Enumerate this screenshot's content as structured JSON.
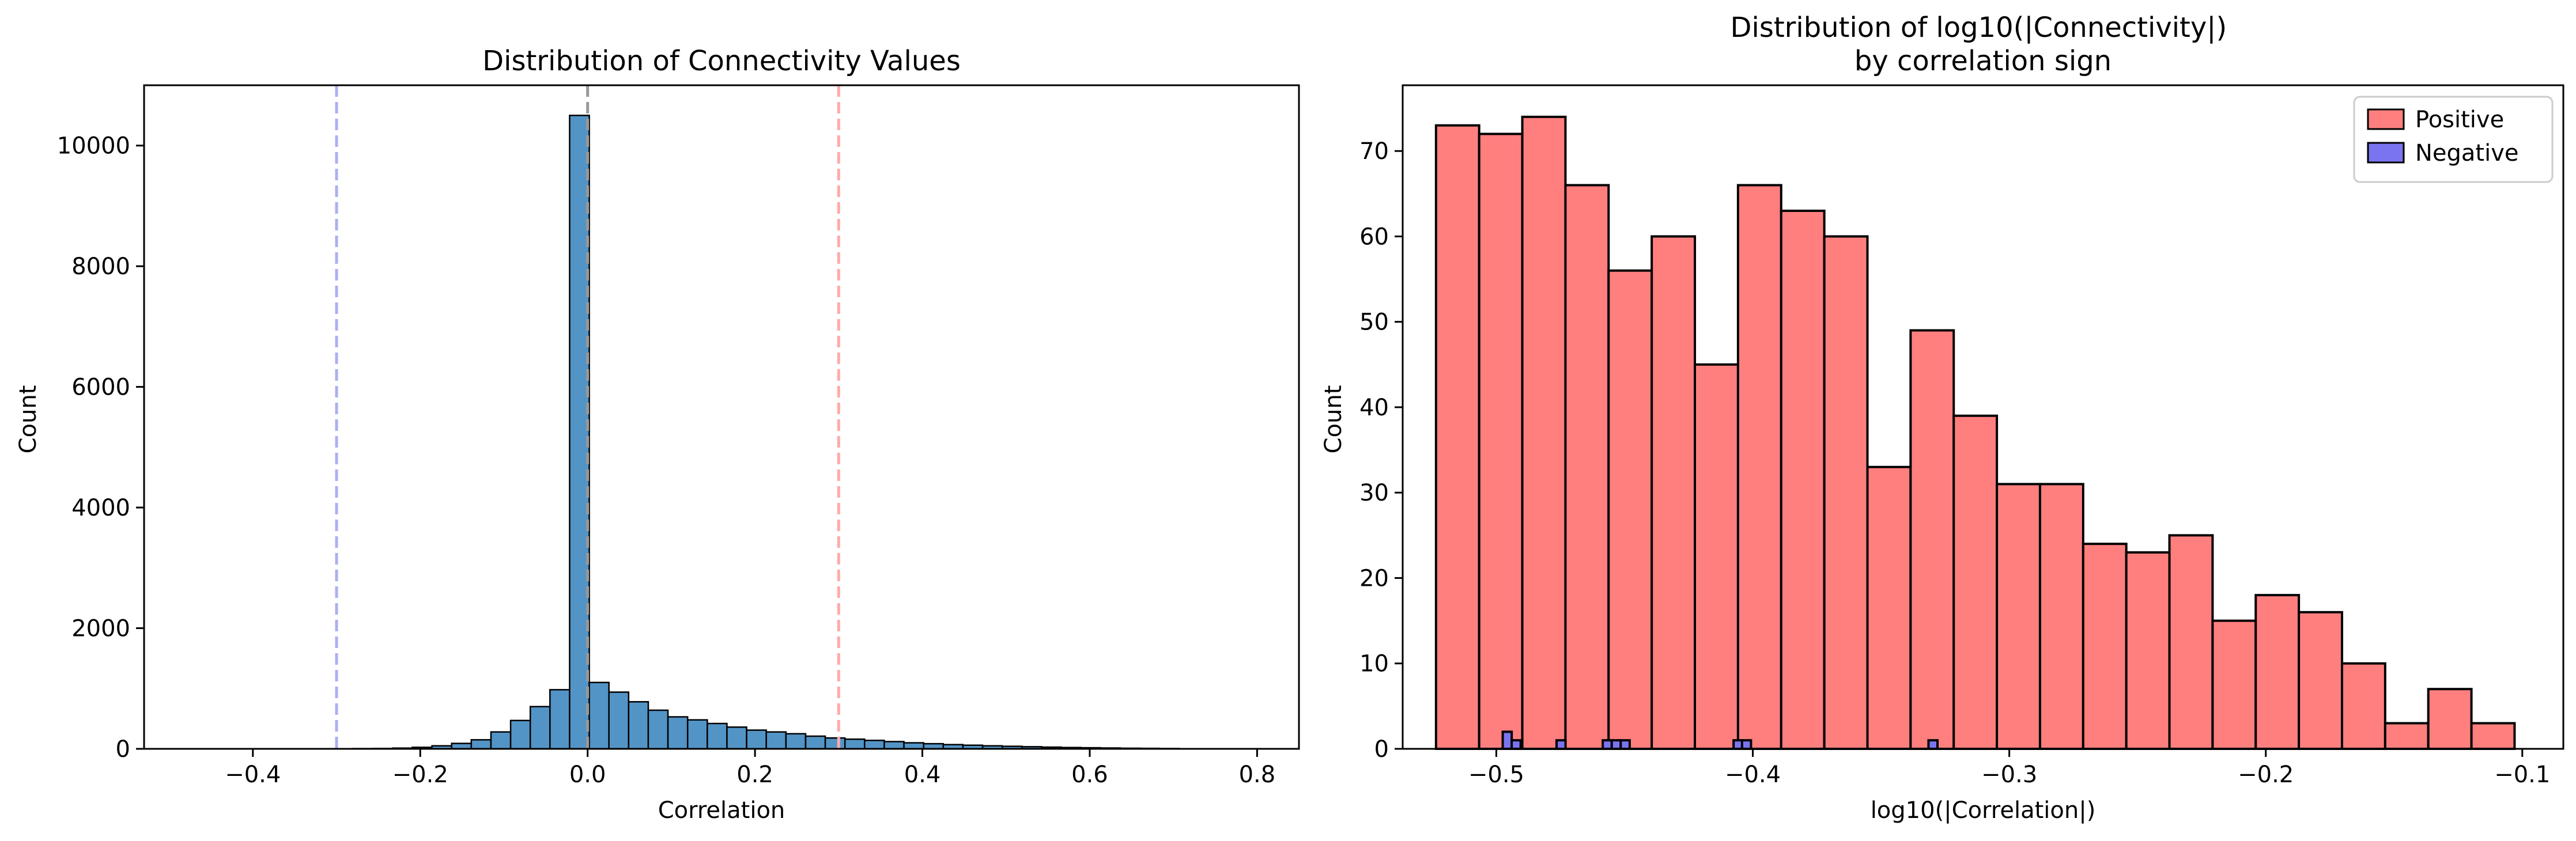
{
  "chart_data": [
    {
      "type": "bar",
      "title": "Distribution of Connectivity Values",
      "xlabel": "Correlation",
      "ylabel": "Count",
      "xlim": [
        -0.53,
        0.85
      ],
      "ylim": [
        0,
        11000
      ],
      "xticks": [
        -0.4,
        -0.2,
        0.0,
        0.2,
        0.4,
        0.6,
        0.8
      ],
      "xtick_labels": [
        "−0.4",
        "−0.2",
        "0.0",
        "0.2",
        "0.4",
        "0.6",
        "0.8"
      ],
      "yticks": [
        0,
        2000,
        4000,
        6000,
        8000,
        10000
      ],
      "ytick_labels": [
        "0",
        "2000",
        "4000",
        "6000",
        "8000",
        "10000"
      ],
      "bar_color": "#5394c6",
      "bin_width": 0.0235,
      "bin_starts": [
        -0.468,
        -0.4445,
        -0.421,
        -0.3975,
        -0.374,
        -0.3505,
        -0.327,
        -0.3035,
        -0.28,
        -0.2565,
        -0.233,
        -0.2095,
        -0.186,
        -0.1625,
        -0.139,
        -0.1155,
        -0.092,
        -0.0685,
        -0.045,
        -0.0215,
        0.002,
        0.0255,
        0.049,
        0.0725,
        0.096,
        0.1195,
        0.143,
        0.1665,
        0.19,
        0.2135,
        0.237,
        0.2605,
        0.284,
        0.3075,
        0.331,
        0.3545,
        0.378,
        0.4015,
        0.425,
        0.4485,
        0.472,
        0.4955,
        0.519,
        0.5425,
        0.566,
        0.5895,
        0.613,
        0.6365,
        0.66,
        0.6835
      ],
      "values": [
        0,
        0,
        0,
        0,
        0,
        0,
        0,
        2,
        4,
        6,
        12,
        25,
        50,
        90,
        150,
        280,
        470,
        700,
        980,
        10500,
        1100,
        940,
        780,
        640,
        530,
        480,
        420,
        360,
        310,
        280,
        250,
        210,
        180,
        160,
        140,
        120,
        100,
        85,
        70,
        60,
        50,
        42,
        35,
        28,
        22,
        18,
        14,
        10,
        8,
        5
      ],
      "reference_lines": [
        {
          "x": -0.3,
          "color": "#aab0f0"
        },
        {
          "x": 0.0,
          "color": "#999999"
        },
        {
          "x": 0.3,
          "color": "#ffaaaa"
        }
      ]
    },
    {
      "type": "bar",
      "title": "Distribution of log10(|Connectivity|)\nby correlation sign",
      "xlabel": "log10(|Correlation|)",
      "ylabel": "Count",
      "xlim": [
        -0.5365,
        -0.084
      ],
      "ylim": [
        0,
        77.7
      ],
      "xticks": [
        -0.5,
        -0.4,
        -0.3,
        -0.2,
        -0.1
      ],
      "xtick_labels": [
        "−0.5",
        "−0.4",
        "−0.3",
        "−0.2",
        "−0.1"
      ],
      "yticks": [
        0,
        10,
        20,
        30,
        40,
        50,
        60,
        70
      ],
      "ytick_labels": [
        "0",
        "10",
        "20",
        "30",
        "40",
        "50",
        "60",
        "70"
      ],
      "legend": {
        "placement": "upper right",
        "entries": [
          "Positive",
          "Negative"
        ]
      },
      "series": [
        {
          "name": "Positive",
          "color": "#ff7f7f",
          "bin_width": 0.01682,
          "bin_starts": [
            -0.5235,
            -0.50668,
            -0.48986,
            -0.47304,
            -0.45622,
            -0.4394,
            -0.42258,
            -0.40576,
            -0.38894,
            -0.37212,
            -0.3553,
            -0.33848,
            -0.32166,
            -0.30484,
            -0.28802,
            -0.2712,
            -0.25438,
            -0.23756,
            -0.22074,
            -0.20392,
            -0.1871,
            -0.17028,
            -0.15346,
            -0.13664,
            -0.11982
          ],
          "values": [
            73,
            72,
            74,
            66,
            56,
            60,
            45,
            66,
            63,
            60,
            33,
            49,
            39,
            31,
            31,
            24,
            23,
            25,
            15,
            18,
            16,
            10,
            3,
            7,
            3
          ]
        },
        {
          "name": "Negative",
          "color": "#7b74f0",
          "bin_width": 0.0035,
          "bin_starts": [
            -0.4975,
            -0.494,
            -0.4765,
            -0.4585,
            -0.455,
            -0.4515,
            -0.4075,
            -0.4042,
            -0.3315
          ],
          "values": [
            2,
            1,
            1,
            1,
            1,
            1,
            1,
            1,
            1
          ]
        }
      ]
    }
  ]
}
